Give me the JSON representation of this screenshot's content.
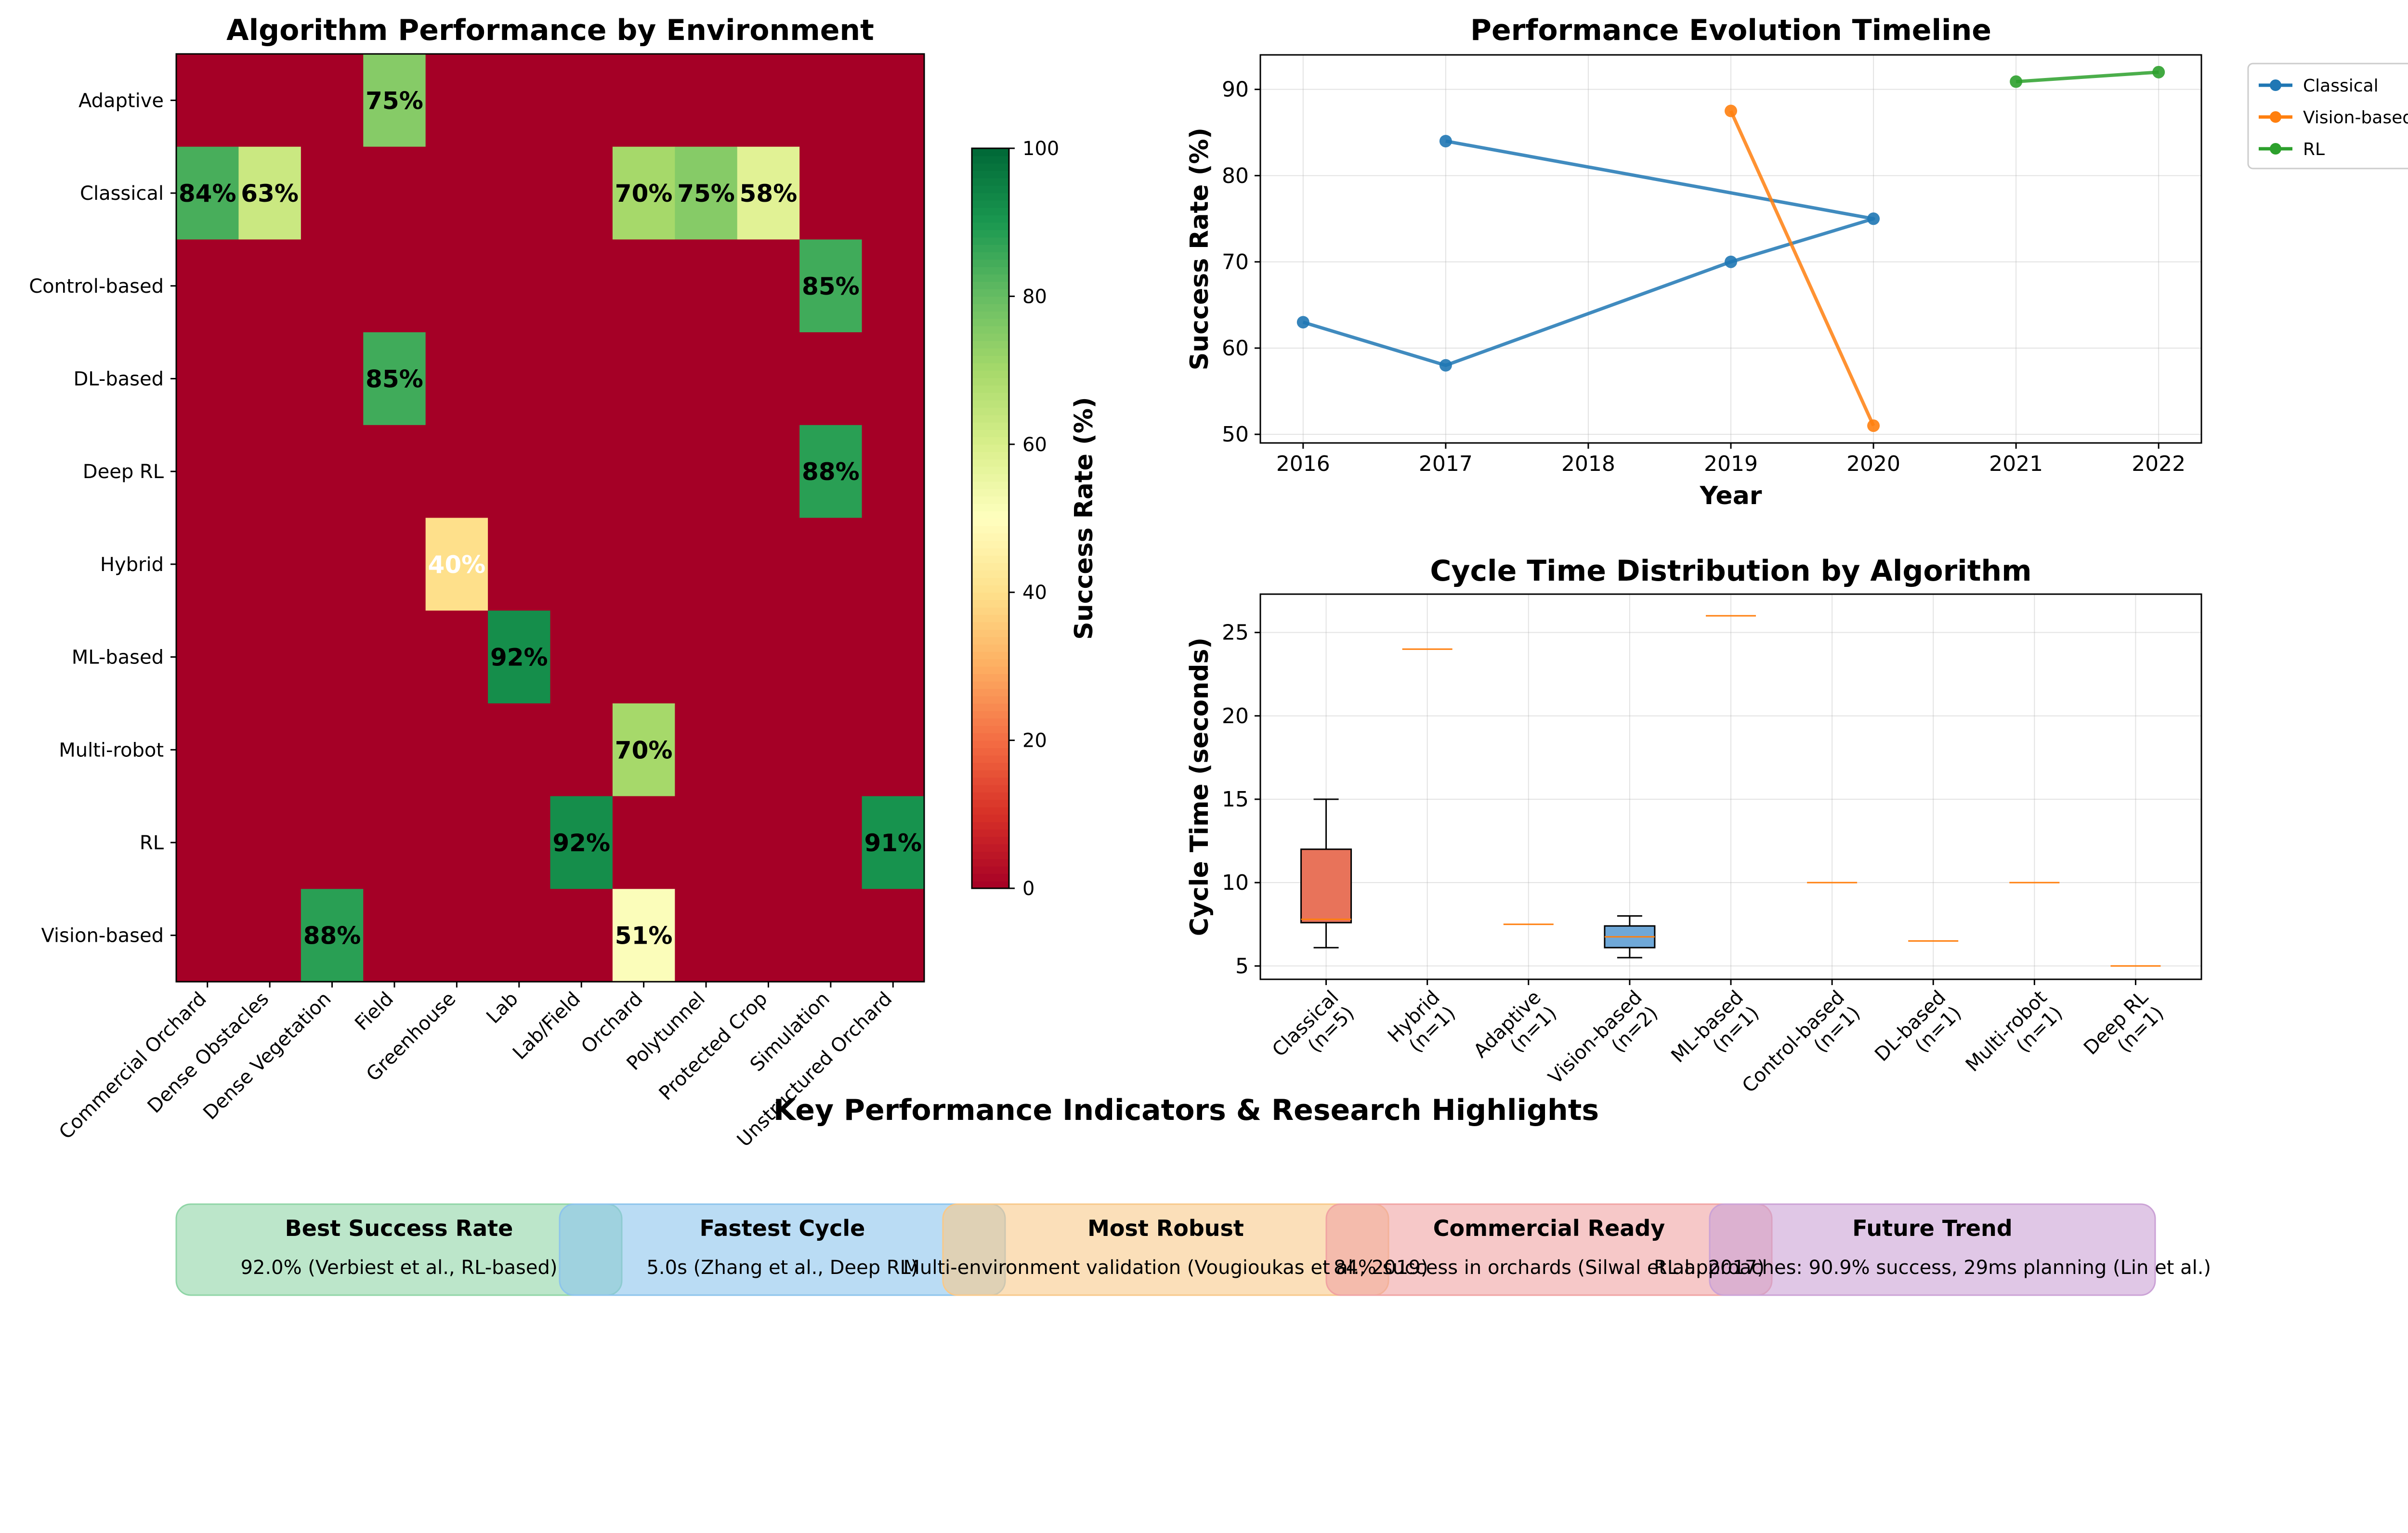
{
  "colors": {
    "classical": "#1f77b4",
    "vision": "#ff7f0e",
    "rl": "#2ca02c",
    "median": "#ff7f0e",
    "grid": "#b0b0b0",
    "cmap": [
      "#a50026",
      "#d73027",
      "#f46d43",
      "#fdae61",
      "#fee08b",
      "#ffffbf",
      "#d9ef8b",
      "#a6d96a",
      "#66bd63",
      "#1a9850",
      "#006837"
    ]
  },
  "chart_data": [
    {
      "type": "heatmap",
      "title": "Algorithm Performance by Environment",
      "rows": [
        "Adaptive",
        "Classical",
        "Control-based",
        "DL-based",
        "Deep RL",
        "Hybrid",
        "ML-based",
        "Multi-robot",
        "RL",
        "Vision-based"
      ],
      "columns": [
        "Commercial Orchard",
        "Dense Obstacles",
        "Dense Vegetation",
        "Field",
        "Greenhouse",
        "Lab",
        "Lab/Field",
        "Orchard",
        "Polytunnel",
        "Protected Crop",
        "Simulation",
        "Unstructured Orchard"
      ],
      "values": [
        [
          0,
          0,
          0,
          75,
          0,
          0,
          0,
          0,
          0,
          0,
          0,
          0
        ],
        [
          84,
          63,
          0,
          0,
          0,
          0,
          0,
          70,
          75,
          58,
          0,
          0
        ],
        [
          0,
          0,
          0,
          0,
          0,
          0,
          0,
          0,
          0,
          0,
          85,
          0
        ],
        [
          0,
          0,
          0,
          85,
          0,
          0,
          0,
          0,
          0,
          0,
          0,
          0
        ],
        [
          0,
          0,
          0,
          0,
          0,
          0,
          0,
          0,
          0,
          0,
          88,
          0
        ],
        [
          0,
          0,
          0,
          0,
          40,
          0,
          0,
          0,
          0,
          0,
          0,
          0
        ],
        [
          0,
          0,
          0,
          0,
          0,
          92,
          0,
          0,
          0,
          0,
          0,
          0
        ],
        [
          0,
          0,
          0,
          0,
          0,
          0,
          0,
          70,
          0,
          0,
          0,
          0
        ],
        [
          0,
          0,
          0,
          0,
          0,
          0,
          92,
          0,
          0,
          0,
          0,
          91
        ],
        [
          0,
          0,
          88,
          0,
          0,
          0,
          0,
          51,
          0,
          0,
          0,
          0
        ]
      ],
      "value_suffix": "%",
      "colorbar": {
        "label": "Success Rate (%)",
        "range": [
          0,
          100
        ],
        "ticks": [
          0,
          20,
          40,
          60,
          80,
          100
        ],
        "colormap": "RdYlGn"
      }
    },
    {
      "type": "line",
      "title": "Performance Evolution Timeline",
      "xlabel": "Year",
      "ylabel": "Success Rate (%)",
      "x_ticks": [
        2016,
        2017,
        2018,
        2019,
        2020,
        2021,
        2022
      ],
      "y_ticks": [
        50,
        60,
        70,
        80,
        90
      ],
      "xlim": [
        2015.7,
        2022.3
      ],
      "ylim": [
        49,
        94
      ],
      "grid": true,
      "legend": "outside top-right",
      "series": [
        {
          "name": "Classical",
          "color": "#1f77b4",
          "points": [
            [
              2016,
              63
            ],
            [
              2017,
              58
            ],
            [
              2019,
              70
            ],
            [
              2020,
              75
            ],
            [
              2017,
              84
            ]
          ]
        },
        {
          "name": "Vision-based",
          "color": "#ff7f0e",
          "points": [
            [
              2020,
              51
            ],
            [
              2019,
              87.5
            ]
          ]
        },
        {
          "name": "RL",
          "color": "#2ca02c",
          "points": [
            [
              2021,
              90.9
            ],
            [
              2022,
              92
            ]
          ]
        }
      ]
    },
    {
      "type": "box",
      "title": "Cycle Time Distribution by Algorithm",
      "ylabel": "Cycle Time (seconds)",
      "y_ticks": [
        5,
        10,
        15,
        20,
        25
      ],
      "ylim": [
        4.2,
        27.3
      ],
      "grid": true,
      "categories": [
        "Classical\n(n=5)",
        "Hybrid\n(n=1)",
        "Adaptive\n(n=1)",
        "Vision-based\n(n=2)",
        "ML-based\n(n=1)",
        "Control-based\n(n=1)",
        "DL-based\n(n=1)",
        "Multi-robot\n(n=1)",
        "Deep RL\n(n=1)"
      ],
      "boxes": [
        {
          "min": 6.1,
          "q1": 7.6,
          "median": 7.8,
          "q3": 12,
          "max": 15,
          "color": "#e8735a"
        },
        {
          "min": 24,
          "q1": 24,
          "median": 24,
          "q3": 24,
          "max": 24,
          "color": "#e8735a"
        },
        {
          "min": 7.5,
          "q1": 7.5,
          "median": 7.5,
          "q3": 7.5,
          "max": 7.5,
          "color": "#e8735a"
        },
        {
          "min": 5.5,
          "q1": 6.1,
          "median": 6.75,
          "q3": 7.4,
          "max": 8,
          "color": "#6fa8d8"
        },
        {
          "min": 26,
          "q1": 26,
          "median": 26,
          "q3": 26,
          "max": 26,
          "color": "#e8735a"
        },
        {
          "min": 10,
          "q1": 10,
          "median": 10,
          "q3": 10,
          "max": 10,
          "color": "#e8735a"
        },
        {
          "min": 6.5,
          "q1": 6.5,
          "median": 6.5,
          "q3": 6.5,
          "max": 6.5,
          "color": "#e8735a"
        },
        {
          "min": 10,
          "q1": 10,
          "median": 10,
          "q3": 10,
          "max": 10,
          "color": "#e8735a"
        },
        {
          "min": 5,
          "q1": 5,
          "median": 5,
          "q3": 5,
          "max": 5,
          "color": "#e8735a"
        }
      ]
    }
  ],
  "kpi": {
    "title": "Key Performance Indicators & Research Highlights",
    "cards": [
      {
        "title": "Best Success Rate",
        "text": "92.0% (Verbiest et al., RL-based)",
        "color": "#8fd5a6"
      },
      {
        "title": "Fastest Cycle",
        "text": "5.0s (Zhang et al., Deep RL)",
        "color": "#8cc4ec"
      },
      {
        "title": "Most Robust",
        "text": "Multi-environment validation (Vougioukas et al., 2019)",
        "color": "#f8c98a"
      },
      {
        "title": "Commercial Ready",
        "text": "84% success in orchards (Silwal et al., 2017)",
        "color": "#f0a3a3"
      },
      {
        "title": "Future Trend",
        "text": "RL approaches: 90.9% success, 29ms planning (Lin et al.)",
        "color": "#cba2d6"
      }
    ]
  }
}
